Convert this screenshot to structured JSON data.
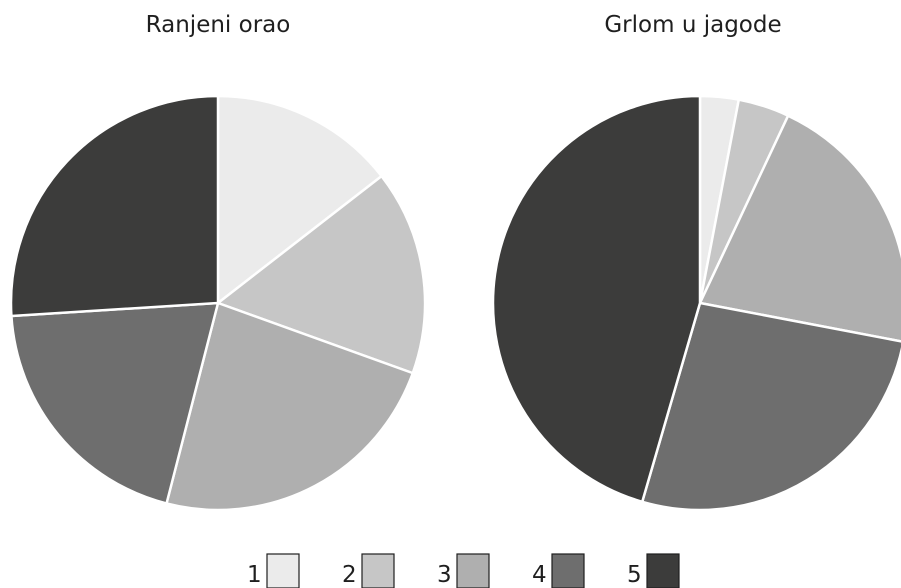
{
  "chart_data": [
    {
      "type": "pie",
      "title": "Ranjeni orao",
      "categories": [
        "1",
        "2",
        "3",
        "4",
        "5"
      ],
      "values": [
        14.5,
        16.0,
        23.5,
        20.0,
        26.0
      ]
    },
    {
      "type": "pie",
      "title": "Grlom u jagode",
      "categories": [
        "1",
        "2",
        "3",
        "4",
        "5"
      ],
      "values": [
        3.0,
        4.0,
        21.0,
        26.5,
        45.5
      ]
    }
  ],
  "legend": {
    "placement": "bottom",
    "items": [
      {
        "label": "1",
        "color": "#ebebeb"
      },
      {
        "label": "2",
        "color": "#c6c6c6"
      },
      {
        "label": "3",
        "color": "#afafaf"
      },
      {
        "label": "4",
        "color": "#6e6e6e"
      },
      {
        "label": "5",
        "color": "#3c3c3b"
      }
    ]
  }
}
